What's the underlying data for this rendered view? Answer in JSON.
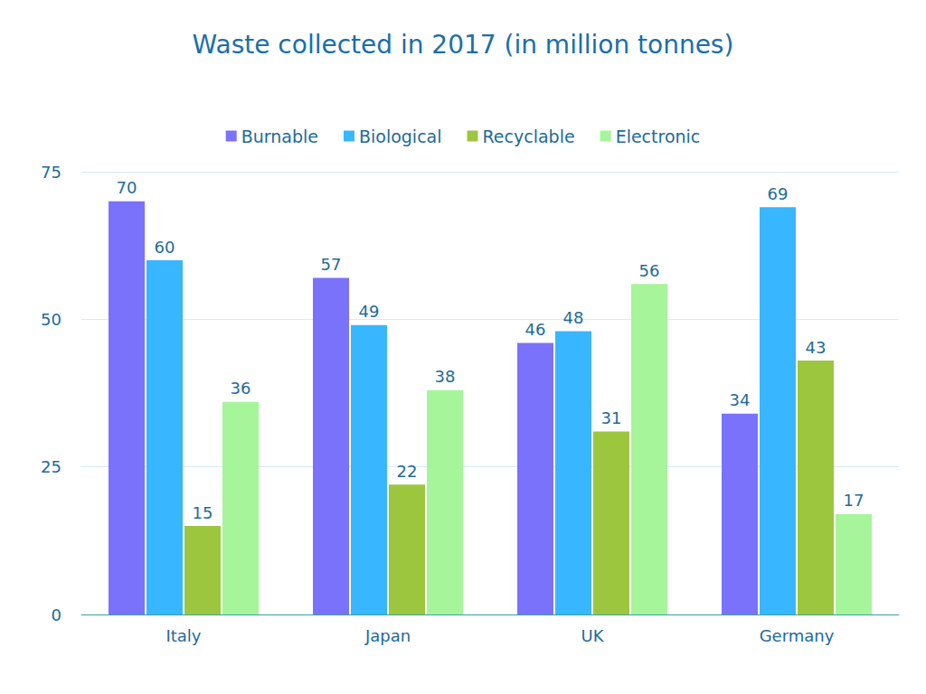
{
  "chart_data": {
    "type": "bar",
    "title": "Waste collected in 2017 (in million tonnes)",
    "categories": [
      "Italy",
      "Japan",
      "UK",
      "Germany"
    ],
    "series": [
      {
        "name": "Burnable",
        "color": "#7b72fb",
        "values": [
          70,
          57,
          46,
          34
        ]
      },
      {
        "name": "Biological",
        "color": "#38b6ff",
        "values": [
          60,
          49,
          48,
          69
        ]
      },
      {
        "name": "Recyclable",
        "color": "#9dc63f",
        "values": [
          15,
          22,
          31,
          43
        ]
      },
      {
        "name": "Electronic",
        "color": "#a6f59a",
        "values": [
          36,
          38,
          56,
          17
        ]
      }
    ],
    "ylim": [
      0,
      75
    ],
    "yticks": [
      0,
      25,
      50,
      75
    ],
    "grid": true,
    "legend": "top",
    "data_labels": true
  }
}
